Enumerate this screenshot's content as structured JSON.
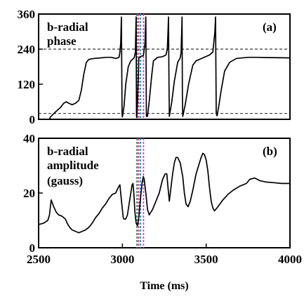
{
  "chart_data": [
    {
      "panel": "(a)",
      "type": "line",
      "annotation": [
        "b-radial",
        "phase"
      ],
      "xlim": [
        2500,
        4000
      ],
      "ylim": [
        0,
        360
      ],
      "yticks": [
        0,
        120,
        240,
        360
      ],
      "reference_lines_y": [
        240,
        20
      ],
      "marker_lines_x": [
        {
          "x": 3087,
          "color": "#2e8b57"
        },
        {
          "x": 3097,
          "color": "#e0306a"
        },
        {
          "x": 3108,
          "color": "#1e90ff"
        },
        {
          "x": 3126,
          "color": "#cc44cc"
        }
      ],
      "series": [
        {
          "points": [
            [
              2500,
              0
            ],
            [
              2565,
              0
            ],
            [
              2570,
              8
            ],
            [
              2600,
              25
            ],
            [
              2630,
              40
            ],
            [
              2650,
              55
            ],
            [
              2665,
              60
            ],
            [
              2680,
              55
            ],
            [
              2700,
              50
            ],
            [
              2720,
              55
            ],
            [
              2740,
              65
            ],
            [
              2755,
              100
            ],
            [
              2770,
              155
            ],
            [
              2785,
              195
            ],
            [
              2800,
              205
            ],
            [
              2830,
              208
            ],
            [
              2870,
              210
            ],
            [
              2900,
              212
            ],
            [
              2935,
              212
            ],
            [
              2960,
              208
            ],
            [
              2980,
              212
            ],
            [
              2985,
              230
            ],
            [
              2990,
              260
            ],
            [
              2992,
              300
            ],
            [
              2994,
              350
            ],
            [
              2996,
              180
            ],
            [
              2998,
              20
            ],
            [
              3000,
              8
            ],
            [
              3010,
              45
            ],
            [
              3020,
              120
            ],
            [
              3035,
              180
            ],
            [
              3050,
              200
            ],
            [
              3070,
              210
            ],
            [
              3078,
              230
            ],
            [
              3080,
              300
            ],
            [
              3082,
              350
            ],
            [
              3084,
              10
            ],
            [
              3086,
              6
            ],
            [
              3090,
              60
            ],
            [
              3094,
              130
            ],
            [
              3098,
              210
            ],
            [
              3110,
              215
            ],
            [
              3125,
              218
            ],
            [
              3135,
              260
            ],
            [
              3140,
              350
            ],
            [
              3143,
              10
            ],
            [
              3150,
              10
            ],
            [
              3160,
              60
            ],
            [
              3175,
              150
            ],
            [
              3185,
              200
            ],
            [
              3210,
              212
            ],
            [
              3240,
              214
            ],
            [
              3260,
              220
            ],
            [
              3268,
              240
            ],
            [
              3272,
              300
            ],
            [
              3275,
              350
            ],
            [
              3278,
              120
            ],
            [
              3280,
              10
            ],
            [
              3295,
              60
            ],
            [
              3310,
              130
            ],
            [
              3330,
              195
            ],
            [
              3345,
              210
            ],
            [
              3350,
              228
            ],
            [
              3354,
              300
            ],
            [
              3356,
              350
            ],
            [
              3358,
              80
            ],
            [
              3360,
              10
            ],
            [
              3375,
              50
            ],
            [
              3395,
              120
            ],
            [
              3420,
              185
            ],
            [
              3440,
              200
            ],
            [
              3480,
              210
            ],
            [
              3520,
              220
            ],
            [
              3540,
              230
            ],
            [
              3552,
              300
            ],
            [
              3556,
              350
            ],
            [
              3560,
              20
            ],
            [
              3565,
              12
            ],
            [
              3575,
              45
            ],
            [
              3590,
              100
            ],
            [
              3610,
              165
            ],
            [
              3640,
              195
            ],
            [
              3680,
              208
            ],
            [
              3750,
              212
            ],
            [
              3800,
              212
            ],
            [
              3900,
              211
            ],
            [
              4000,
              210
            ]
          ]
        }
      ]
    },
    {
      "panel": "(b)",
      "type": "line",
      "annotation": [
        "b-radial",
        "amplitude",
        "(gauss)"
      ],
      "xlim": [
        2500,
        4000
      ],
      "ylim": [
        0,
        40
      ],
      "yticks": [
        0,
        20,
        40
      ],
      "xticks": [
        2500,
        3000,
        3500,
        4000
      ],
      "xlabel": "Time (ms)",
      "marker_lines_x": [
        {
          "x": 3087,
          "color": "#2e8b57"
        },
        {
          "x": 3097,
          "color": "#e0306a"
        },
        {
          "x": 3108,
          "color": "#1e90ff"
        },
        {
          "x": 3126,
          "color": "#cc44cc"
        }
      ],
      "series": [
        {
          "points": [
            [
              2500,
              8.5
            ],
            [
              2530,
              9
            ],
            [
              2555,
              10
            ],
            [
              2565,
              12
            ],
            [
              2575,
              17.5
            ],
            [
              2590,
              15
            ],
            [
              2605,
              13
            ],
            [
              2620,
              12
            ],
            [
              2640,
              11.5
            ],
            [
              2660,
              10.5
            ],
            [
              2670,
              9
            ],
            [
              2685,
              7.5
            ],
            [
              2700,
              6.5
            ],
            [
              2720,
              6
            ],
            [
              2740,
              5.5
            ],
            [
              2760,
              6
            ],
            [
              2780,
              6.5
            ],
            [
              2800,
              7.5
            ],
            [
              2820,
              9
            ],
            [
              2840,
              11
            ],
            [
              2860,
              12.5
            ],
            [
              2880,
              14.5
            ],
            [
              2900,
              16
            ],
            [
              2920,
              18
            ],
            [
              2940,
              19.5
            ],
            [
              2960,
              20
            ],
            [
              2975,
              22
            ],
            [
              2985,
              23
            ],
            [
              2990,
              20
            ],
            [
              2998,
              15
            ],
            [
              3005,
              11
            ],
            [
              3010,
              10.5
            ],
            [
              3020,
              10.5
            ],
            [
              3030,
              12
            ],
            [
              3045,
              18
            ],
            [
              3058,
              23
            ],
            [
              3063,
              23.5
            ],
            [
              3068,
              20
            ],
            [
              3075,
              13
            ],
            [
              3082,
              9
            ],
            [
              3090,
              8
            ],
            [
              3098,
              11
            ],
            [
              3108,
              18
            ],
            [
              3118,
              24
            ],
            [
              3125,
              26
            ],
            [
              3130,
              25
            ],
            [
              3140,
              20
            ],
            [
              3150,
              14
            ],
            [
              3160,
              12
            ],
            [
              3180,
              14
            ],
            [
              3200,
              17
            ],
            [
              3220,
              20
            ],
            [
              3240,
              25
            ],
            [
              3255,
              27
            ],
            [
              3265,
              27
            ],
            [
              3272,
              22
            ],
            [
              3280,
              17
            ],
            [
              3290,
              22
            ],
            [
              3300,
              27
            ],
            [
              3310,
              31
            ],
            [
              3320,
              33
            ],
            [
              3330,
              33
            ],
            [
              3345,
              31
            ],
            [
              3360,
              26
            ],
            [
              3370,
              20
            ],
            [
              3380,
              16
            ],
            [
              3392,
              15
            ],
            [
              3405,
              17
            ],
            [
              3420,
              21
            ],
            [
              3440,
              27
            ],
            [
              3455,
              30
            ],
            [
              3470,
              33
            ],
            [
              3480,
              34.5
            ],
            [
              3490,
              34
            ],
            [
              3500,
              32
            ],
            [
              3510,
              28
            ],
            [
              3520,
              22
            ],
            [
              3530,
              17
            ],
            [
              3540,
              14.5
            ],
            [
              3550,
              13.5
            ],
            [
              3570,
              15
            ],
            [
              3600,
              17.5
            ],
            [
              3630,
              19.5
            ],
            [
              3660,
              21
            ],
            [
              3700,
              22.5
            ],
            [
              3740,
              23.5
            ],
            [
              3760,
              25
            ],
            [
              3790,
              25.5
            ],
            [
              3820,
              24.5
            ],
            [
              3860,
              24
            ],
            [
              3900,
              23.8
            ],
            [
              3950,
              23.5
            ],
            [
              4000,
              23.5
            ]
          ]
        }
      ]
    }
  ]
}
